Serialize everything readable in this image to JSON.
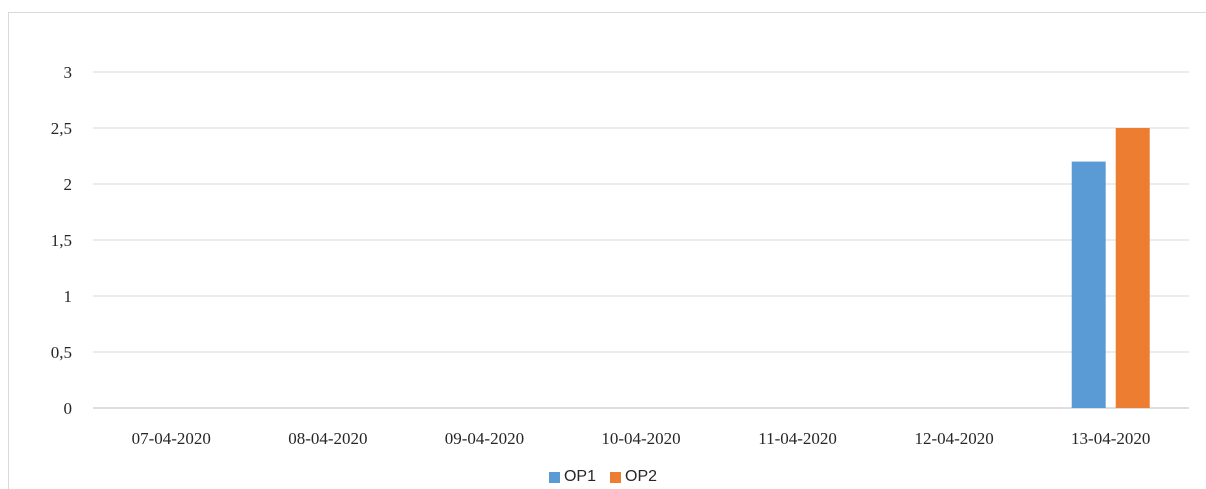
{
  "chart_data": {
    "type": "bar",
    "categories": [
      "07-04-2020",
      "08-04-2020",
      "09-04-2020",
      "10-04-2020",
      "11-04-2020",
      "12-04-2020",
      "13-04-2020"
    ],
    "series": [
      {
        "name": "OP1",
        "color": "#5b9bd5",
        "values": [
          0,
          0,
          0,
          0,
          0,
          0,
          2.2
        ]
      },
      {
        "name": "OP2",
        "color": "#ed7d31",
        "values": [
          0,
          0,
          0,
          0,
          0,
          0,
          2.5
        ]
      }
    ],
    "y_ticks": [
      "0",
      "0,5",
      "1",
      "1,5",
      "2",
      "2,5",
      "3"
    ],
    "ylim": [
      0,
      3
    ],
    "grid": true,
    "legend_position": "bottom",
    "title": "",
    "xlabel": "",
    "ylabel": ""
  }
}
